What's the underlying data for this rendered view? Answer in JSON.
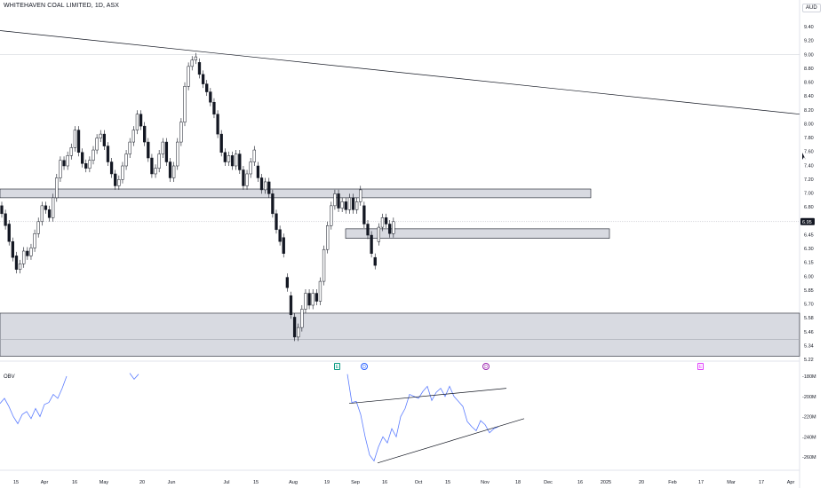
{
  "header": {
    "title": "WHITEHAVEN COAL LIMITED, 1D, ASX",
    "currency": "AUD"
  },
  "indicator": {
    "label": "OBV"
  },
  "current_price": "6.95",
  "markers": [
    {
      "label": "E",
      "color": "#089981",
      "shape": "square"
    },
    {
      "label": "D",
      "color": "#2962ff",
      "shape": "circle"
    },
    {
      "label": "D",
      "color": "#9c27b0",
      "shape": "circle"
    },
    {
      "label": "E",
      "color": "#e040fb",
      "shape": "square"
    }
  ],
  "chart_data": [
    {
      "type": "candlestick",
      "title": "WHITEHAVEN COAL LIMITED, 1D, ASX",
      "y_ticks": [
        "9.40",
        "9.20",
        "9.00",
        "8.80",
        "8.60",
        "8.40",
        "8.20",
        "8.00",
        "7.80",
        "7.60",
        "7.40",
        "7.20",
        "7.00",
        "6.80",
        "6.60",
        "6.45",
        "6.30",
        "6.15",
        "6.00",
        "5.85",
        "5.70",
        "5.58",
        "5.46",
        "5.34",
        "5.22"
      ],
      "ylim": [
        5.2,
        9.45
      ],
      "x_ticks": [
        "15",
        "Apr",
        "16",
        "May",
        "20",
        "Jun",
        "Jul",
        "15",
        "Aug",
        "19",
        "Sep",
        "16",
        "Oct",
        "15",
        "Nov",
        "18",
        "Dec",
        "16",
        "2025",
        "20",
        "Feb",
        "17",
        "Mar",
        "17",
        "Apr"
      ],
      "last_price": 6.95,
      "candles": [
        {
          "o": 7.15,
          "c": 7.05
        },
        {
          "o": 7.05,
          "c": 6.9
        },
        {
          "o": 6.92,
          "c": 6.7
        },
        {
          "o": 6.7,
          "c": 6.5
        },
        {
          "o": 6.52,
          "c": 6.35
        },
        {
          "o": 6.35,
          "c": 6.42
        },
        {
          "o": 6.42,
          "c": 6.58
        },
        {
          "o": 6.58,
          "c": 6.52
        },
        {
          "o": 6.52,
          "c": 6.62
        },
        {
          "o": 6.62,
          "c": 6.8
        },
        {
          "o": 6.8,
          "c": 6.95
        },
        {
          "o": 6.95,
          "c": 7.15
        },
        {
          "o": 7.15,
          "c": 7.1
        },
        {
          "o": 7.1,
          "c": 7.0
        },
        {
          "o": 7.0,
          "c": 7.25
        },
        {
          "o": 7.25,
          "c": 7.5
        },
        {
          "o": 7.5,
          "c": 7.72
        },
        {
          "o": 7.72,
          "c": 7.65
        },
        {
          "o": 7.65,
          "c": 7.78
        },
        {
          "o": 7.78,
          "c": 7.88
        },
        {
          "o": 7.88,
          "c": 8.1
        },
        {
          "o": 8.1,
          "c": 7.82
        },
        {
          "o": 7.82,
          "c": 7.68
        },
        {
          "o": 7.68,
          "c": 7.62
        },
        {
          "o": 7.62,
          "c": 7.72
        },
        {
          "o": 7.72,
          "c": 7.85
        },
        {
          "o": 7.85,
          "c": 8.0
        },
        {
          "o": 8.0,
          "c": 8.05
        },
        {
          "o": 8.05,
          "c": 7.9
        },
        {
          "o": 7.9,
          "c": 7.7
        },
        {
          "o": 7.7,
          "c": 7.55
        },
        {
          "o": 7.55,
          "c": 7.4
        },
        {
          "o": 7.4,
          "c": 7.48
        },
        {
          "o": 7.48,
          "c": 7.65
        },
        {
          "o": 7.65,
          "c": 7.8
        },
        {
          "o": 7.8,
          "c": 7.95
        },
        {
          "o": 7.95,
          "c": 8.1
        },
        {
          "o": 8.1,
          "c": 8.3
        },
        {
          "o": 8.3,
          "c": 8.15
        },
        {
          "o": 8.15,
          "c": 7.95
        },
        {
          "o": 7.95,
          "c": 7.75
        },
        {
          "o": 7.75,
          "c": 7.55
        },
        {
          "o": 7.55,
          "c": 7.62
        },
        {
          "o": 7.62,
          "c": 7.8
        },
        {
          "o": 7.8,
          "c": 7.95
        },
        {
          "o": 7.95,
          "c": 7.7
        },
        {
          "o": 7.7,
          "c": 7.5
        },
        {
          "o": 7.5,
          "c": 7.65
        },
        {
          "o": 7.65,
          "c": 7.95
        },
        {
          "o": 7.95,
          "c": 8.2
        },
        {
          "o": 8.2,
          "c": 8.65
        },
        {
          "o": 8.65,
          "c": 8.9
        },
        {
          "o": 8.9,
          "c": 8.98
        },
        {
          "o": 8.98,
          "c": 9.02
        },
        {
          "o": 8.95,
          "c": 8.8
        },
        {
          "o": 8.8,
          "c": 8.68
        },
        {
          "o": 8.68,
          "c": 8.58
        },
        {
          "o": 8.58,
          "c": 8.45
        },
        {
          "o": 8.45,
          "c": 8.3
        },
        {
          "o": 8.3,
          "c": 8.05
        },
        {
          "o": 8.05,
          "c": 7.82
        },
        {
          "o": 7.82,
          "c": 7.7
        },
        {
          "o": 7.7,
          "c": 7.78
        },
        {
          "o": 7.78,
          "c": 7.65
        },
        {
          "o": 7.65,
          "c": 7.8
        },
        {
          "o": 7.8,
          "c": 7.6
        },
        {
          "o": 7.6,
          "c": 7.4
        },
        {
          "o": 7.4,
          "c": 7.55
        },
        {
          "o": 7.55,
          "c": 7.7
        },
        {
          "o": 7.7,
          "c": 7.85
        },
        {
          "o": 7.65,
          "c": 7.5
        },
        {
          "o": 7.5,
          "c": 7.35
        },
        {
          "o": 7.35,
          "c": 7.45
        },
        {
          "o": 7.45,
          "c": 7.3
        },
        {
          "o": 7.3,
          "c": 7.05
        },
        {
          "o": 7.05,
          "c": 6.85
        },
        {
          "o": 6.85,
          "c": 6.7
        },
        {
          "o": 6.75,
          "c": 6.55
        },
        {
          "o": 6.25,
          "c": 6.12
        },
        {
          "o": 6.02,
          "c": 5.78
        },
        {
          "o": 5.75,
          "c": 5.5
        },
        {
          "o": 5.5,
          "c": 5.62
        },
        {
          "o": 5.62,
          "c": 5.85
        },
        {
          "o": 5.85,
          "c": 6.05
        },
        {
          "o": 6.05,
          "c": 5.9
        },
        {
          "o": 5.9,
          "c": 6.05
        },
        {
          "o": 6.05,
          "c": 5.95
        },
        {
          "o": 5.95,
          "c": 6.2
        },
        {
          "o": 6.2,
          "c": 6.6
        },
        {
          "o": 6.6,
          "c": 6.9
        },
        {
          "o": 6.9,
          "c": 7.15
        },
        {
          "o": 7.15,
          "c": 7.3
        },
        {
          "o": 7.3,
          "c": 7.12
        },
        {
          "o": 7.12,
          "c": 7.2
        },
        {
          "o": 7.2,
          "c": 7.1
        },
        {
          "o": 7.1,
          "c": 7.25
        },
        {
          "o": 7.25,
          "c": 7.1
        },
        {
          "o": 7.1,
          "c": 7.2
        },
        {
          "o": 7.2,
          "c": 7.35
        },
        {
          "o": 7.15,
          "c": 6.92
        },
        {
          "o": 6.92,
          "c": 6.78
        },
        {
          "o": 6.78,
          "c": 6.55
        },
        {
          "o": 6.5,
          "c": 6.4
        },
        {
          "o": 6.7,
          "c": 6.88
        },
        {
          "o": 6.88,
          "c": 7.0
        },
        {
          "o": 7.0,
          "c": 6.92
        },
        {
          "o": 6.92,
          "c": 6.8
        },
        {
          "o": 6.8,
          "c": 6.95
        }
      ],
      "zones": [
        {
          "from": 7.25,
          "to": 7.36
        },
        {
          "from": 6.74,
          "to": 6.86
        },
        {
          "from": 5.26,
          "to": 5.8
        }
      ],
      "trendline": {
        "from_price": 9.35,
        "to_price": 8.3
      }
    },
    {
      "type": "line",
      "title": "OBV",
      "y_ticks": [
        "-180M",
        "-200M",
        "-220M",
        "-240M",
        "-260M"
      ],
      "ylim": [
        -272,
        -176
      ],
      "series": [
        {
          "name": "OBV",
          "segments": [
            [
              -207,
              -202,
              -210,
              -220,
              -227,
              -218,
              -215,
              -222,
              -212,
              -220,
              -208,
              -206,
              -198,
              -202,
              -192,
              -180
            ],
            [
              -177,
              -183,
              -178
            ],
            [
              -178,
              -206,
              -205,
              -218,
              -240,
              -258,
              -264,
              -250,
              -240,
              -246,
              -232,
              -240,
              -220,
              -212,
              -198,
              -200,
              -202,
              -195,
              -190,
              -204,
              -196,
              -192,
              -200,
              -190,
              -200,
              -205,
              -210,
              -225,
              -230,
              -234,
              -224,
              -228,
              -236,
              -232,
              -230
            ]
          ]
        }
      ],
      "trendlines": [
        {
          "from": -207,
          "to": -192
        },
        {
          "from": -266,
          "to": -222
        }
      ]
    }
  ]
}
